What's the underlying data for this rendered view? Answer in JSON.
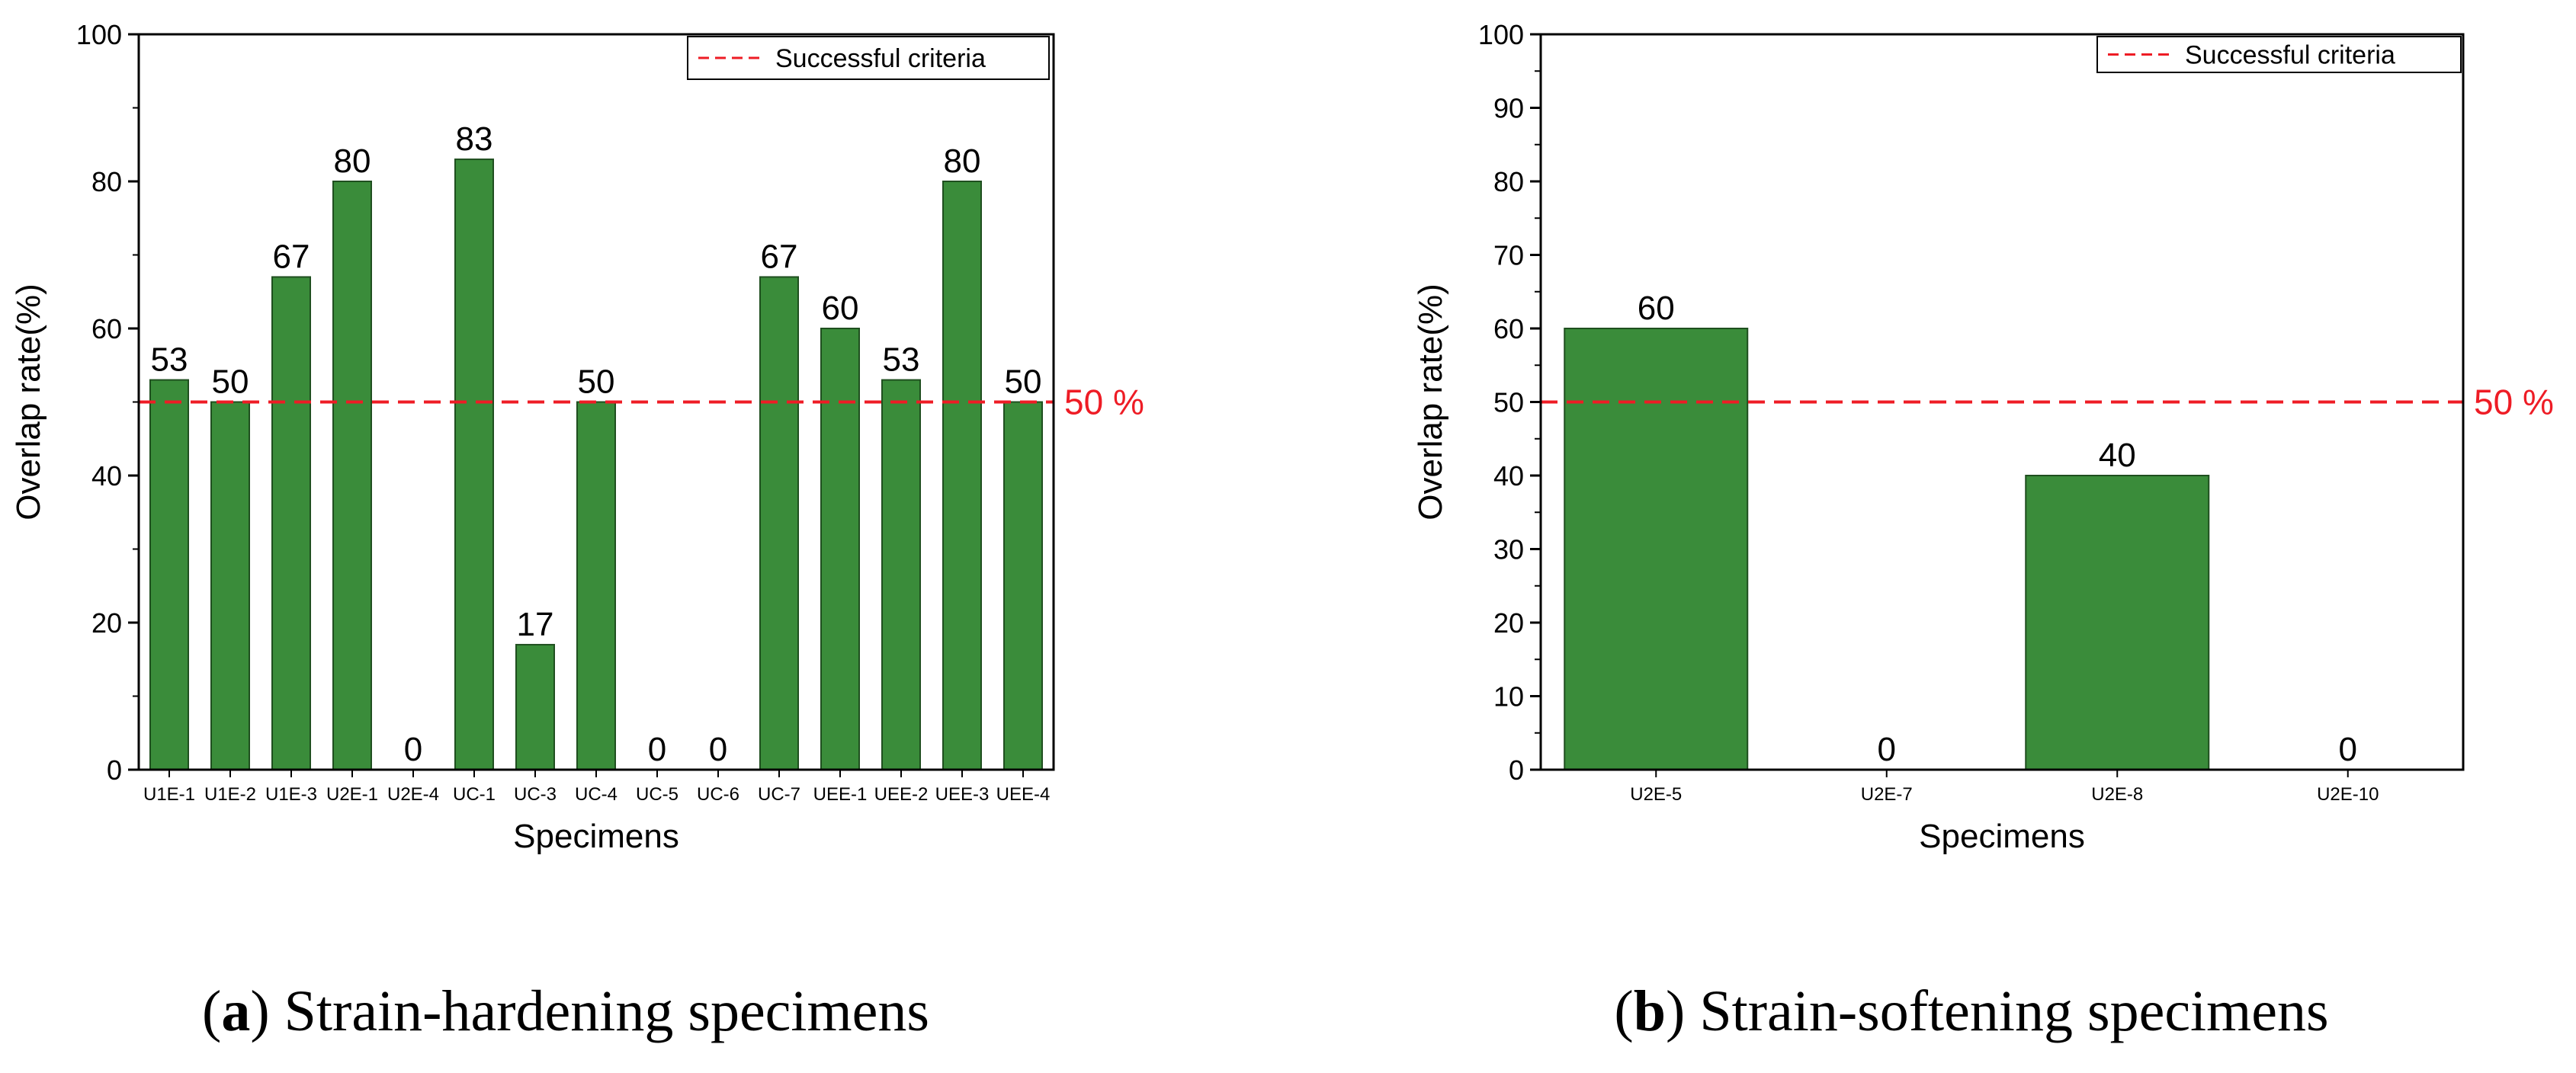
{
  "colors": {
    "bar": "#3a8c3a",
    "bar_edge": "#1f4f1f",
    "criteria": "#ee1c25",
    "axis": "#000000"
  },
  "chart_data": [
    {
      "id": "a",
      "type": "bar",
      "categories": [
        "U1E-1",
        "U1E-2",
        "U1E-3",
        "U2E-1",
        "U2E-4",
        "UC-1",
        "UC-3",
        "UC-4",
        "UC-5",
        "UC-6",
        "UC-7",
        "UEE-1",
        "UEE-2",
        "UEE-3",
        "UEE-4"
      ],
      "values": [
        53,
        50,
        67,
        80,
        0,
        83,
        17,
        50,
        0,
        0,
        67,
        60,
        53,
        80,
        50
      ],
      "xlabel": "Specimens",
      "ylabel": "Overlap rate(%)",
      "ylim": [
        0,
        100
      ],
      "yticks": [
        0,
        20,
        40,
        60,
        80,
        100
      ],
      "legend": "Successful criteria",
      "criteria_value": 50,
      "criteria_label": "50 %",
      "caption_letter": "a",
      "caption_text": "Strain-hardening specimens"
    },
    {
      "id": "b",
      "type": "bar",
      "categories": [
        "U2E-5",
        "U2E-7",
        "U2E-8",
        "U2E-10"
      ],
      "values": [
        60,
        0,
        40,
        0
      ],
      "xlabel": "Specimens",
      "ylabel": "Overlap rate(%)",
      "ylim": [
        0,
        100
      ],
      "yticks": [
        0,
        10,
        20,
        30,
        40,
        50,
        60,
        70,
        80,
        90,
        100
      ],
      "legend": "Successful criteria",
      "criteria_value": 50,
      "criteria_label": "50 %",
      "caption_letter": "b",
      "caption_text": "Strain-softening specimens"
    }
  ]
}
